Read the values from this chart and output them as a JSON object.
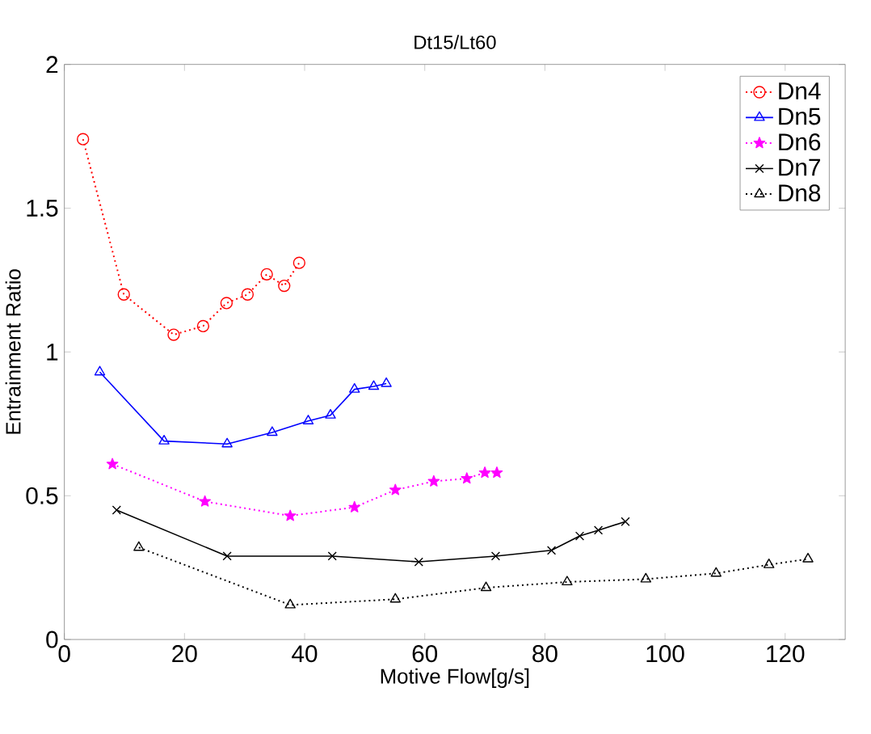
{
  "chart_data": {
    "type": "line",
    "title": "Dt15/Lt60",
    "xlabel": "Motive Flow[g/s]",
    "ylabel": "Entrainment Ratio",
    "xlim": [
      0,
      130
    ],
    "ylim": [
      0,
      2
    ],
    "xticks": [
      0,
      20,
      40,
      60,
      80,
      100,
      120
    ],
    "yticks": [
      0,
      0.5,
      1,
      1.5,
      2
    ],
    "grid": false,
    "legend": "top right",
    "series": [
      {
        "name": "Dn4",
        "color": "#ff0000",
        "marker": "circle",
        "line_style": "dotted",
        "x": [
          3.1,
          9.9,
          18.2,
          23.1,
          27.0,
          30.5,
          33.7,
          36.6,
          39.1
        ],
        "values": [
          1.74,
          1.2,
          1.06,
          1.09,
          1.17,
          1.2,
          1.27,
          1.23,
          1.31
        ]
      },
      {
        "name": "Dn5",
        "color": "#0000ff",
        "marker": "triangle",
        "line_style": "solid",
        "x": [
          5.9,
          16.6,
          27.1,
          34.6,
          40.6,
          44.3,
          48.3,
          51.5,
          53.6
        ],
        "values": [
          0.93,
          0.69,
          0.68,
          0.72,
          0.76,
          0.78,
          0.87,
          0.88,
          0.89
        ]
      },
      {
        "name": "Dn6",
        "color": "#ff00ff",
        "marker": "star",
        "line_style": "dotted",
        "x": [
          8.0,
          23.4,
          37.6,
          48.3,
          55.1,
          61.5,
          67.0,
          70.0,
          72.0
        ],
        "values": [
          0.61,
          0.48,
          0.43,
          0.46,
          0.52,
          0.55,
          0.56,
          0.58,
          0.58
        ]
      },
      {
        "name": "Dn7",
        "color": "#000000",
        "marker": "cross",
        "line_style": "solid",
        "x": [
          8.7,
          27.1,
          44.6,
          59.0,
          71.8,
          81.1,
          85.8,
          88.9,
          93.4
        ],
        "values": [
          0.45,
          0.29,
          0.29,
          0.27,
          0.29,
          0.31,
          0.36,
          0.38,
          0.41
        ]
      },
      {
        "name": "Dn8",
        "color": "#000000",
        "marker": "triangle",
        "line_style": "dotted",
        "x": [
          12.4,
          37.6,
          55.1,
          70.2,
          83.7,
          96.8,
          108.5,
          117.3,
          123.8
        ],
        "values": [
          0.32,
          0.12,
          0.14,
          0.18,
          0.2,
          0.21,
          0.23,
          0.26,
          0.28
        ]
      }
    ]
  }
}
